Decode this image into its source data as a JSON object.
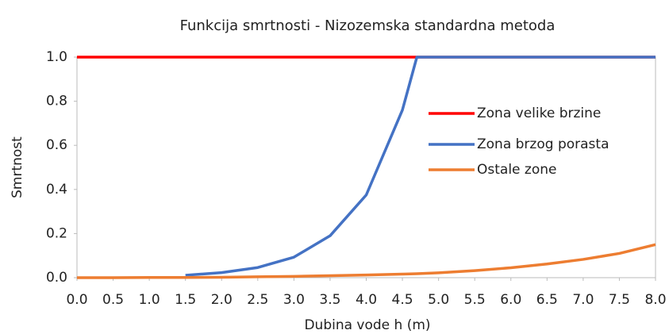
{
  "chart_data": {
    "type": "line",
    "title": "Funkcija smrtnosti - Nizozemska standardna metoda",
    "xlabel": "Dubina vode h (m)",
    "ylabel": "Smrtnost",
    "x": [
      0,
      0.5,
      1,
      1.5,
      2,
      2.5,
      3,
      3.5,
      4,
      4.5,
      4.7,
      5,
      5.5,
      6,
      6.5,
      7,
      7.5,
      8
    ],
    "series": [
      {
        "name": "Zona velike brzine",
        "color": "#ff0000",
        "values": [
          1,
          1,
          1,
          1,
          1,
          1,
          1,
          1,
          1,
          1,
          1,
          1,
          1,
          1,
          1,
          1,
          1,
          1
        ]
      },
      {
        "name": "Zona brzog porasta",
        "color": "#4472c4",
        "values": [
          null,
          null,
          null,
          0.011,
          0.023,
          0.046,
          0.093,
          0.19,
          0.375,
          0.76,
          1,
          1,
          1,
          1,
          1,
          1,
          1,
          1
        ]
      },
      {
        "name": "Ostale zone",
        "color": "#ed7d31",
        "values": [
          0,
          0,
          0.001,
          0.001,
          0.002,
          0.004,
          0.006,
          0.009,
          0.012,
          0.016,
          0.018,
          0.022,
          0.032,
          0.045,
          0.062,
          0.083,
          0.11,
          0.15
        ]
      }
    ],
    "xlim": [
      0,
      8
    ],
    "xticks": [
      {
        "value": 0,
        "label": "0.0"
      },
      0.5,
      {
        "value": 1,
        "label": "1.0"
      },
      1.5,
      {
        "value": 2,
        "label": "2.0"
      },
      2.5,
      {
        "value": 3,
        "label": "3.0"
      },
      3.5,
      {
        "value": 4,
        "label": "4.0"
      },
      4.5,
      {
        "value": 5,
        "label": "5.0"
      },
      5.5,
      {
        "value": 6,
        "label": "6.0"
      },
      6.5,
      {
        "value": 7,
        "label": "7.0"
      },
      7.5,
      {
        "value": 8,
        "label": "8.0"
      }
    ],
    "ylim": [
      0,
      1
    ],
    "yticks": [
      {
        "value": 0,
        "label": "0.0"
      },
      0.2,
      0.4,
      0.6,
      0.8,
      {
        "value": 1,
        "label": "1.0"
      }
    ],
    "grid": false
  }
}
